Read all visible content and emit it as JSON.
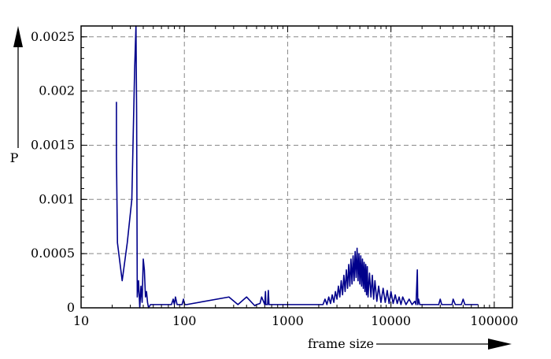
{
  "chart_data": {
    "type": "line",
    "xlabel": "frame size",
    "ylabel": "P",
    "xscale": "log",
    "xlim": [
      10,
      150000
    ],
    "ylim": [
      0,
      0.0026
    ],
    "x_ticks": [
      10,
      100,
      1000,
      10000,
      100000
    ],
    "x_tick_labels": [
      "10",
      "100",
      "1000",
      "10000",
      "100000"
    ],
    "y_ticks": [
      0,
      0.0005,
      0.001,
      0.0015,
      0.002,
      0.0025
    ],
    "y_tick_labels": [
      "0",
      "0.0005",
      "0.001",
      "0.0015",
      "0.002",
      "0.0025"
    ],
    "grid": true,
    "line_color": "#00008B",
    "series": [
      {
        "x": [
          22,
          22,
          22.5,
          25,
          28,
          31,
          33,
          34,
          34.5,
          35,
          36,
          37,
          38,
          39,
          40,
          41,
          42,
          43,
          44,
          45,
          47,
          60,
          75,
          78,
          80,
          82,
          85,
          95,
          98,
          100,
          102,
          105,
          270,
          330,
          400,
          480,
          500,
          540,
          560,
          600,
          610,
          615,
          620,
          640,
          650,
          660,
          700,
          2200,
          2300,
          2400,
          2500,
          2600,
          2700,
          2800,
          2900,
          3000,
          3100,
          3200,
          3300,
          3400,
          3500,
          3600,
          3700,
          3800,
          3900,
          4000,
          4100,
          4200,
          4300,
          4400,
          4500,
          4600,
          4700,
          4800,
          4900,
          5000,
          5100,
          5200,
          5300,
          5400,
          5500,
          5600,
          5700,
          5800,
          5900,
          6000,
          6200,
          6400,
          6600,
          6800,
          7000,
          7300,
          7600,
          8000,
          8400,
          8800,
          9200,
          9600,
          10000,
          10500,
          11000,
          11500,
          12000,
          12500,
          13000,
          14000,
          15000,
          16000,
          17000,
          17500,
          18000,
          18200,
          18500,
          19000,
          20000,
          22000,
          24000,
          26000,
          28000,
          29000,
          30000,
          31000,
          32000,
          34000,
          36000,
          38000,
          39000,
          40000,
          42000,
          44000,
          46000,
          48000,
          50000,
          52000,
          55000,
          58000,
          60000,
          62000,
          64000,
          66000,
          70000
        ],
        "y": [
          0.0019,
          0.0014,
          0.0006,
          0.00025,
          0.0006,
          0.001,
          0.0022,
          0.0026,
          0.0018,
          0.0001,
          0.00025,
          0.0,
          0.0002,
          5e-05,
          0.00045,
          0.00035,
          0.0001,
          0.00015,
          5e-05,
          0.0,
          3e-05,
          3e-05,
          3e-05,
          8e-05,
          3e-05,
          0.0001,
          3e-05,
          3e-05,
          8e-05,
          4e-05,
          3e-05,
          3e-05,
          0.0001,
          3e-05,
          0.0001,
          2e-05,
          3e-05,
          4e-05,
          0.0001,
          3e-05,
          0.00015,
          3e-05,
          3e-05,
          3e-05,
          0.00016,
          3e-05,
          3e-05,
          3e-05,
          8e-05,
          3e-05,
          0.0001,
          4e-05,
          0.00012,
          5e-05,
          0.00015,
          8e-05,
          0.0002,
          0.0001,
          0.00025,
          0.00012,
          0.0003,
          0.00015,
          0.00035,
          0.00018,
          0.0004,
          0.0002,
          0.00045,
          0.00022,
          0.00048,
          0.00025,
          0.00052,
          0.00028,
          0.00055,
          0.00025,
          0.0005,
          0.00022,
          0.00048,
          0.0002,
          0.00045,
          0.00018,
          0.00042,
          0.00015,
          0.0004,
          0.00012,
          0.00038,
          0.0001,
          0.00032,
          0.0001,
          0.0003,
          8e-05,
          0.00025,
          6e-05,
          0.0002,
          5e-05,
          0.00018,
          5e-05,
          0.00016,
          4e-05,
          0.00015,
          4e-05,
          0.00012,
          4e-05,
          0.0001,
          3e-05,
          0.0001,
          3e-05,
          8e-05,
          3e-05,
          6e-05,
          3e-05,
          0.00035,
          3e-05,
          8e-05,
          3e-05,
          3e-05,
          3e-05,
          3e-05,
          3e-05,
          3e-05,
          3e-05,
          8e-05,
          3e-05,
          3e-05,
          3e-05,
          3e-05,
          3e-05,
          3e-05,
          8e-05,
          3e-05,
          3e-05,
          3e-05,
          3e-05,
          8e-05,
          3e-05,
          3e-05,
          3e-05,
          3e-05,
          3e-05,
          3e-05,
          3e-05,
          3e-05
        ]
      }
    ]
  }
}
